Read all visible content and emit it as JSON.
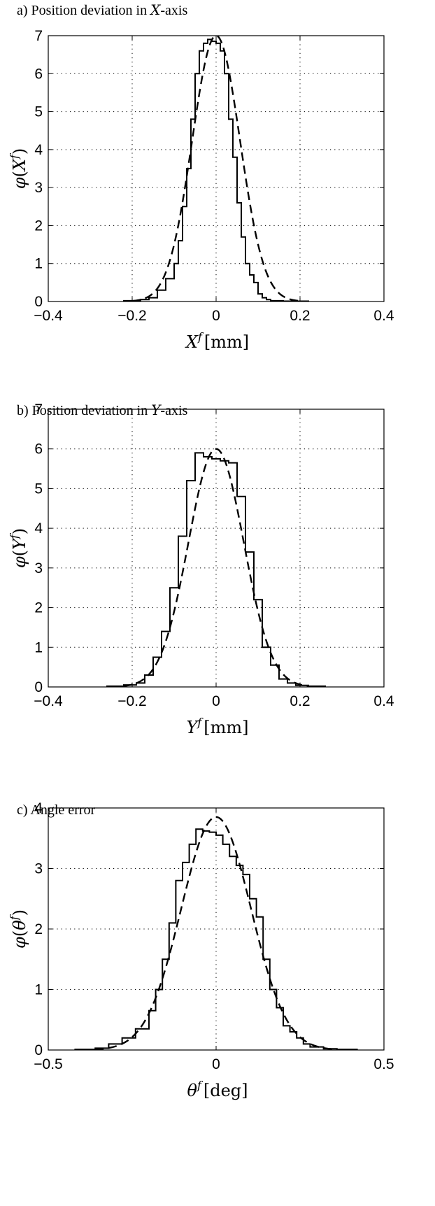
{
  "chart_data": [
    {
      "type": "line",
      "title_prefix": "a) Position deviation in ",
      "title_var": "X",
      "title_suffix": "-axis",
      "xlabel_var": "X",
      "xlabel_sup": "f",
      "xlabel_unit": "[mm]",
      "ylabel_fn": "φ",
      "ylabel_var": "X",
      "ylabel_sup": "f",
      "xlim": [
        -0.4,
        0.4
      ],
      "ylim": [
        0,
        7
      ],
      "xticks": [
        -0.4,
        -0.2,
        0,
        0.2,
        0.4
      ],
      "xtick_labels": [
        "−0.4",
        "−0.2",
        "0",
        "0.2",
        "0.4"
      ],
      "yticks": [
        0,
        1,
        2,
        3,
        4,
        5,
        6,
        7
      ],
      "ytick_labels": [
        "0",
        "1",
        "2",
        "3",
        "4",
        "5",
        "6",
        "7"
      ],
      "grid": true,
      "series": [
        {
          "style": "histogram-step",
          "edges": [
            -0.22,
            -0.2,
            -0.18,
            -0.16,
            -0.14,
            -0.12,
            -0.1,
            -0.09,
            -0.08,
            -0.07,
            -0.06,
            -0.05,
            -0.04,
            -0.03,
            -0.02,
            -0.01,
            0,
            0.01,
            0.02,
            0.03,
            0.04,
            0.05,
            0.06,
            0.07,
            0.08,
            0.09,
            0.1,
            0.11,
            0.12,
            0.13,
            0.14,
            0.15,
            0.16,
            0.18,
            0.2,
            0.22
          ],
          "values": [
            0.02,
            0.02,
            0.05,
            0.1,
            0.3,
            0.6,
            1.0,
            1.6,
            2.5,
            3.5,
            4.8,
            6.0,
            6.6,
            6.8,
            6.9,
            6.85,
            6.8,
            6.6,
            6.0,
            4.8,
            3.8,
            2.6,
            1.7,
            1.0,
            0.7,
            0.5,
            0.2,
            0.1,
            0.05,
            0.02,
            0.02,
            0.02,
            0.01,
            0.01,
            0.01
          ]
        },
        {
          "style": "dashed",
          "shape": "gaussian",
          "mean": 0,
          "sd": 0.057,
          "peak": 7.0,
          "range": [
            -0.2,
            0.2
          ]
        }
      ]
    },
    {
      "type": "line",
      "title_prefix": "b) Position deviation in ",
      "title_var": "Y",
      "title_suffix": "-axis",
      "xlabel_var": "Y",
      "xlabel_sup": "f",
      "xlabel_unit": "[mm]",
      "ylabel_fn": "φ",
      "ylabel_var": "Y",
      "ylabel_sup": "f",
      "xlim": [
        -0.4,
        0.4
      ],
      "ylim": [
        0,
        7
      ],
      "xticks": [
        -0.4,
        -0.2,
        0,
        0.2,
        0.4
      ],
      "xtick_labels": [
        "−0.4",
        "−0.2",
        "0",
        "0.2",
        "0.4"
      ],
      "yticks": [
        0,
        1,
        2,
        3,
        4,
        5,
        6,
        7
      ],
      "ytick_labels": [
        "0",
        "1",
        "2",
        "3",
        "4",
        "5",
        "6",
        "7"
      ],
      "grid": true,
      "series": [
        {
          "style": "histogram-step",
          "edges": [
            -0.26,
            -0.22,
            -0.19,
            -0.17,
            -0.15,
            -0.13,
            -0.11,
            -0.09,
            -0.07,
            -0.05,
            -0.03,
            -0.01,
            0.01,
            0.03,
            0.05,
            0.07,
            0.09,
            0.11,
            0.13,
            0.15,
            0.17,
            0.19,
            0.22,
            0.26
          ],
          "values": [
            0.02,
            0.05,
            0.1,
            0.3,
            0.75,
            1.4,
            2.5,
            3.8,
            5.2,
            5.9,
            5.8,
            5.75,
            5.7,
            5.65,
            4.8,
            3.4,
            2.2,
            1.0,
            0.55,
            0.2,
            0.1,
            0.04,
            0.02
          ]
        },
        {
          "style": "dashed",
          "shape": "gaussian",
          "mean": 0,
          "sd": 0.066,
          "peak": 6.0,
          "range": [
            -0.22,
            0.22
          ]
        }
      ]
    },
    {
      "type": "line",
      "title_prefix": "c) Angle error",
      "title_var": "",
      "title_suffix": "",
      "xlabel_var": "θ",
      "xlabel_sup": "f",
      "xlabel_unit": "[deg]",
      "ylabel_fn": "φ",
      "ylabel_var": "θ",
      "ylabel_sup": "f",
      "xlim": [
        -0.5,
        0.5
      ],
      "ylim": [
        0,
        4
      ],
      "xticks": [
        -0.5,
        0,
        0.5
      ],
      "xtick_labels": [
        "−0.5",
        "0",
        "0.5"
      ],
      "yticks": [
        0,
        1,
        2,
        3,
        4
      ],
      "ytick_labels": [
        "0",
        "1",
        "2",
        "3",
        "4"
      ],
      "grid": true,
      "series": [
        {
          "style": "histogram-step",
          "edges": [
            -0.42,
            -0.36,
            -0.32,
            -0.28,
            -0.24,
            -0.2,
            -0.18,
            -0.16,
            -0.14,
            -0.12,
            -0.1,
            -0.08,
            -0.06,
            -0.04,
            -0.02,
            0,
            0.02,
            0.04,
            0.06,
            0.08,
            0.1,
            0.12,
            0.14,
            0.16,
            0.18,
            0.2,
            0.22,
            0.24,
            0.26,
            0.28,
            0.32,
            0.36,
            0.42
          ],
          "values": [
            0.01,
            0.03,
            0.1,
            0.2,
            0.35,
            0.65,
            1.0,
            1.5,
            2.1,
            2.8,
            3.1,
            3.4,
            3.65,
            3.62,
            3.6,
            3.55,
            3.4,
            3.2,
            3.05,
            2.9,
            2.5,
            2.2,
            1.5,
            1.0,
            0.7,
            0.4,
            0.3,
            0.2,
            0.1,
            0.05,
            0.02,
            0.01
          ]
        },
        {
          "style": "dashed",
          "shape": "gaussian",
          "mean": 0,
          "sd": 0.104,
          "peak": 3.85,
          "range": [
            -0.36,
            0.36
          ]
        }
      ]
    }
  ]
}
